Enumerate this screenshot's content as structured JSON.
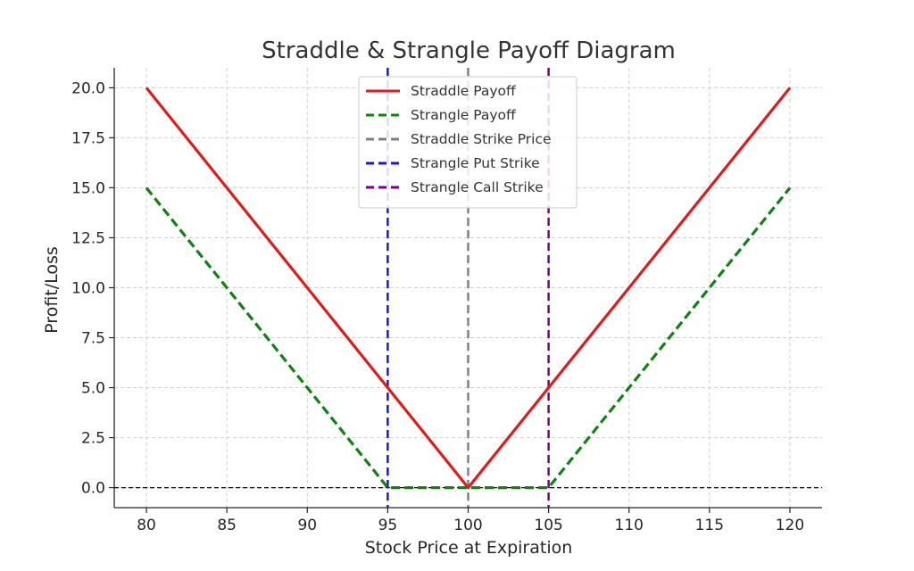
{
  "chart_data": {
    "type": "line",
    "title": "Straddle & Strangle Payoff Diagram",
    "xlabel": "Stock Price at Expiration",
    "ylabel": "Profit/Loss",
    "xlim": [
      78,
      122
    ],
    "ylim": [
      -1,
      21
    ],
    "x_ticks": [
      80,
      85,
      90,
      95,
      100,
      105,
      110,
      115,
      120
    ],
    "x_tick_labels": [
      "80",
      "85",
      "90",
      "95",
      "100",
      "105",
      "110",
      "115",
      "120"
    ],
    "y_ticks": [
      0,
      2.5,
      5,
      7.5,
      10,
      12.5,
      15,
      17.5,
      20
    ],
    "y_tick_labels": [
      "0.0",
      "2.5",
      "5.0",
      "7.5",
      "10.0",
      "12.5",
      "15.0",
      "17.5",
      "20.0"
    ],
    "grid": true,
    "legend_position": "top-center",
    "series": [
      {
        "name": "Straddle Payoff",
        "color": "#dd1c1c",
        "style": "solid",
        "x": [
          80,
          100,
          120
        ],
        "y": [
          20,
          0,
          20
        ]
      },
      {
        "name": "Strangle Payoff",
        "color": "#138013",
        "style": "dashed",
        "x": [
          80,
          95,
          105,
          120
        ],
        "y": [
          15,
          0,
          0,
          15
        ]
      }
    ],
    "vertical_lines": [
      {
        "name": "Straddle Strike Price",
        "x": 100,
        "color": "#808080",
        "style": "dashed"
      },
      {
        "name": "Strangle Put Strike",
        "x": 95,
        "color": "#1a1acc",
        "style": "dashed"
      },
      {
        "name": "Strangle Call Strike",
        "x": 105,
        "color": "#800080",
        "style": "dashed"
      }
    ],
    "horizontal_lines": [
      {
        "y": 0,
        "color": "#000000",
        "style": "dashed"
      }
    ]
  }
}
